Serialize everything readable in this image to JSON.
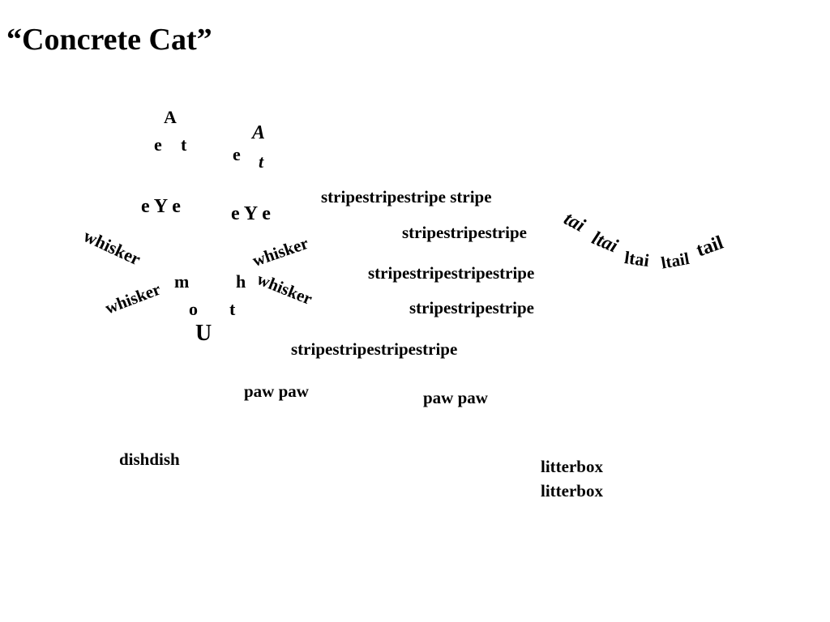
{
  "title": "“Concrete Cat”",
  "ears": {
    "left": {
      "a": "A",
      "e": "e",
      "t": "t"
    },
    "right": {
      "a": "A",
      "e": "e",
      "t": "t"
    }
  },
  "eyes": {
    "left": "e Y e",
    "right": "e Y e"
  },
  "whiskers": [
    "whisker",
    "whisker",
    "whisker",
    "whisker"
  ],
  "mouth": {
    "m": "m",
    "h": "h",
    "o": "o",
    "t": "t",
    "u": "U"
  },
  "stripes": [
    "stripestripestripe stripe",
    "stripestripestripe",
    "stripestripestripestripe",
    "stripestripestripe",
    "stripestripestripestripe"
  ],
  "tail": [
    "tai",
    "ltai",
    "ltai",
    "ltail",
    "tail"
  ],
  "paws": [
    "paw paw",
    "paw paw"
  ],
  "dish": "dishdish",
  "litterbox": [
    "litterbox",
    "litterbox"
  ]
}
